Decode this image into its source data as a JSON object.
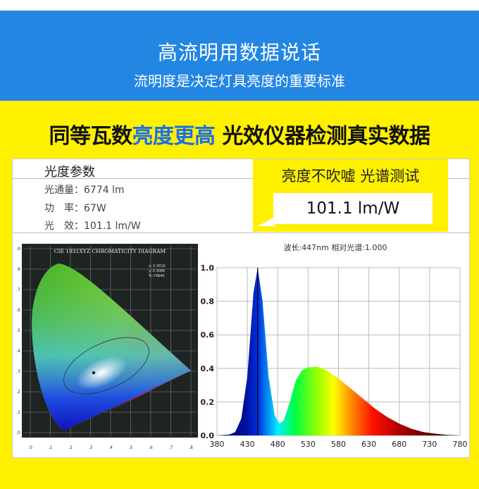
{
  "banner": {
    "title": "高流明用数据说话",
    "subtitle": "流明度是决定灯具亮度的重要标准"
  },
  "headline": {
    "part1": "同等瓦数",
    "part2": "亮度更高",
    "part3": " 光效仪器检测真实数据"
  },
  "colors": {
    "banner": "#2386e3",
    "background": "#fff000",
    "highlight": "#1a6fe8"
  },
  "params": {
    "title": "光度参数",
    "rows": [
      {
        "label": "光通量：",
        "value": "6774 lm"
      },
      {
        "label": "功　率：",
        "value": "67W"
      },
      {
        "label": "光　效：",
        "value": "101.1 lm/W"
      }
    ]
  },
  "callout": {
    "title": "亮度不吹嘘 光谱测试",
    "value": "101.1  lm/W"
  },
  "cie": {
    "title": "CIE 1931XYZ CHROMATICITY DIAGRAM",
    "x": "x: 0.3010",
    "y": "y: 0.3086",
    "tc": "Tc:7484K",
    "xticks": [
      ".0",
      ".1",
      ".2",
      ".3",
      ".4",
      ".5",
      ".6",
      ".7",
      ".8"
    ],
    "yticks": [
      ".0",
      ".1",
      ".2",
      ".3",
      ".4",
      ".5",
      ".6",
      ".7",
      ".8",
      ".9"
    ]
  },
  "chart_data": {
    "type": "area",
    "title": "波长:447nm  相对光谱:1.000",
    "xlabel": "",
    "ylabel": "",
    "xlim": [
      380,
      780
    ],
    "ylim": [
      0,
      1.0
    ],
    "xticks": [
      "380",
      "430",
      "480",
      "530",
      "580",
      "630",
      "680",
      "730",
      "780"
    ],
    "yticks": [
      "0.0",
      "0.2",
      "0.4",
      "0.6",
      "0.8",
      "1.0"
    ],
    "grid": true,
    "marker_wavelength": 447,
    "x": [
      380,
      400,
      410,
      420,
      430,
      440,
      447,
      455,
      465,
      475,
      483,
      490,
      500,
      510,
      520,
      530,
      545,
      560,
      580,
      600,
      620,
      640,
      660,
      680,
      700,
      720,
      740,
      760,
      780
    ],
    "y": [
      0,
      0.005,
      0.02,
      0.1,
      0.35,
      0.85,
      1.0,
      0.8,
      0.35,
      0.12,
      0.07,
      0.09,
      0.2,
      0.33,
      0.39,
      0.405,
      0.41,
      0.39,
      0.34,
      0.28,
      0.22,
      0.16,
      0.11,
      0.07,
      0.04,
      0.02,
      0.01,
      0.003,
      0
    ]
  }
}
